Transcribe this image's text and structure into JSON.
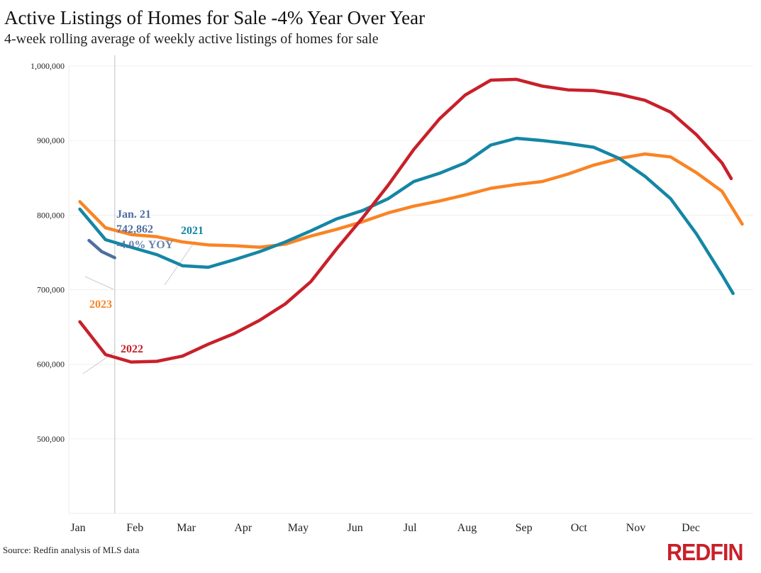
{
  "title": "Active Listings of Homes for Sale -4% Year Over Year",
  "subtitle": "4-week rolling average of weekly active listings of homes for sale",
  "source": "Source: Redfin analysis of MLS data",
  "logo": "REDFIN",
  "chart_data": {
    "type": "line",
    "title": "Active Listings of Homes for Sale -4% Year Over Year",
    "subtitle": "4-week rolling average of weekly active listings of homes for sale",
    "xlabel": "",
    "ylabel": "",
    "ylim": [
      400000,
      1000000
    ],
    "grid": true,
    "y_ticks": [
      "500,000",
      "600,000",
      "700,000",
      "800,000",
      "900,000",
      "1,000,000"
    ],
    "y_tick_values": [
      500000,
      600000,
      700000,
      800000,
      900000,
      1000000
    ],
    "x_ticks": [
      "Jan",
      "Feb",
      "Mar",
      "Apr",
      "May",
      "Jun",
      "Jul",
      "Aug",
      "Sep",
      "Oct",
      "Nov",
      "Dec"
    ],
    "series": [
      {
        "name": "2022",
        "color": "#c8202a",
        "x": [
          "Jan 2",
          "Jan 16",
          "Jan 30",
          "Feb 13",
          "Feb 27",
          "Mar 13",
          "Mar 27",
          "Apr 10",
          "Apr 24",
          "May 8",
          "May 22",
          "Jun 5",
          "Jun 19",
          "Jul 3",
          "Jul 17",
          "Jul 31",
          "Aug 14",
          "Aug 28",
          "Sep 11",
          "Sep 25",
          "Oct 9",
          "Oct 23",
          "Nov 6",
          "Nov 20",
          "Dec 4",
          "Dec 18",
          "Dec 23"
        ],
        "values": [
          657000,
          613000,
          603000,
          604000,
          611000,
          627000,
          641000,
          659000,
          681000,
          711000,
          755000,
          796000,
          840000,
          888000,
          929000,
          961000,
          981000,
          982000,
          973000,
          968000,
          967000,
          962000,
          954000,
          938000,
          908000,
          870000,
          849000
        ]
      },
      {
        "name": "2021",
        "color": "#1486a5",
        "x": [
          "Jan 2",
          "Jan 16",
          "Jan 30",
          "Feb 13",
          "Feb 27",
          "Mar 13",
          "Mar 27",
          "Apr 10",
          "Apr 24",
          "May 8",
          "May 22",
          "Jun 5",
          "Jun 19",
          "Jul 3",
          "Jul 17",
          "Jul 31",
          "Aug 14",
          "Aug 28",
          "Sep 11",
          "Sep 25",
          "Oct 9",
          "Oct 23",
          "Nov 6",
          "Nov 20",
          "Dec 4",
          "Dec 18",
          "Dec 24"
        ],
        "values": [
          808000,
          767000,
          757000,
          747000,
          732000,
          730000,
          740000,
          751000,
          764000,
          779000,
          795000,
          806000,
          822000,
          845000,
          856000,
          870000,
          894000,
          903000,
          900000,
          896000,
          891000,
          876000,
          852000,
          822000,
          775000,
          720000,
          695000
        ]
      },
      {
        "name": "2023",
        "color": "#f98425",
        "x": [
          "Jan 2",
          "Jan 16",
          "Jan 30",
          "Feb 13",
          "Feb 27",
          "Mar 13",
          "Mar 27",
          "Apr 10",
          "Apr 24",
          "May 8",
          "May 22",
          "Jun 5",
          "Jun 19",
          "Jul 3",
          "Jul 17",
          "Jul 31",
          "Aug 14",
          "Aug 28",
          "Sep 11",
          "Sep 25",
          "Oct 9",
          "Oct 23",
          "Nov 6",
          "Nov 20",
          "Dec 4",
          "Dec 18",
          "Dec 29"
        ],
        "values": [
          818000,
          783000,
          774000,
          771000,
          764000,
          760000,
          759000,
          757000,
          761000,
          772000,
          781000,
          791000,
          803000,
          812000,
          819000,
          827000,
          836000,
          841000,
          845000,
          855000,
          867000,
          876000,
          882000,
          878000,
          857000,
          832000,
          788000
        ]
      },
      {
        "name": "",
        "color": "#4e6fa0",
        "x": [
          "Jan 7",
          "Jan 14",
          "Jan 21"
        ],
        "values": [
          766000,
          751000,
          742862
        ]
      }
    ],
    "annotations": {
      "highlight_date": "Jan. 21",
      "highlight_value": "742,862",
      "highlight_yoy": "-4.0% YOY",
      "label_2021": "2021",
      "label_2022": "2022",
      "label_2023": "2023"
    }
  }
}
